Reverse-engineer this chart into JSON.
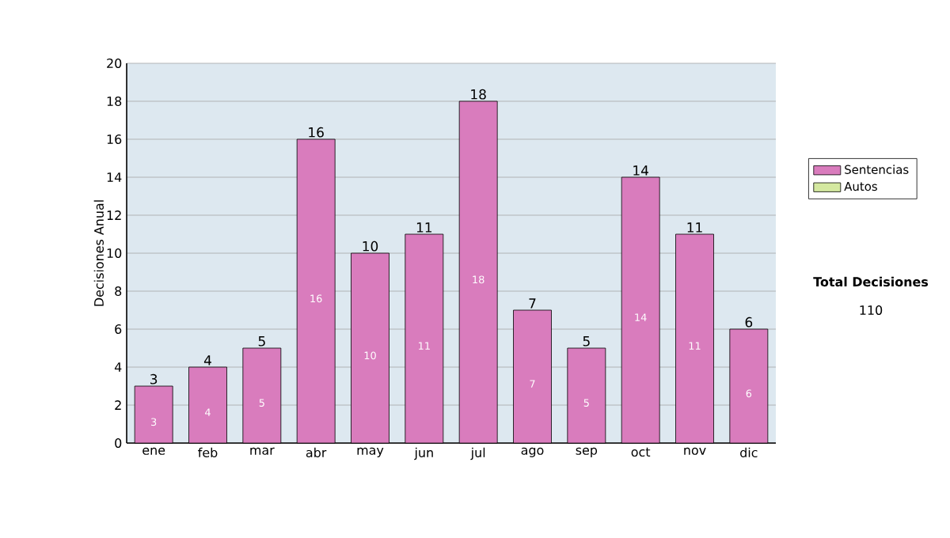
{
  "chart_data": {
    "type": "bar",
    "stacked": true,
    "ylabel": "Decisiones Anual",
    "categories": [
      "ene",
      "feb",
      "mar",
      "abr",
      "may",
      "jun",
      "jul",
      "ago",
      "sep",
      "oct",
      "nov",
      "dic"
    ],
    "series": [
      {
        "name": "Sentencias",
        "color": "#d97cbd",
        "values": [
          3,
          4,
          5,
          16,
          10,
          11,
          18,
          7,
          5,
          14,
          11,
          6
        ],
        "value_labels": [
          "3",
          "4",
          "5",
          "16",
          "10",
          "11",
          "18",
          "7",
          "5",
          "14",
          "11",
          "6"
        ]
      },
      {
        "name": "Autos",
        "color": "#d4e8a0",
        "values": [
          0,
          0,
          0,
          0,
          0,
          0,
          0,
          0,
          0,
          0,
          0,
          0
        ]
      }
    ],
    "totals": [
      "3",
      "4",
      "5",
      "16",
      "10",
      "11",
      "18",
      "7",
      "5",
      "14",
      "11",
      "6"
    ],
    "ylim": [
      0,
      20
    ],
    "yticks": [
      0,
      2,
      4,
      6,
      8,
      10,
      12,
      14,
      16,
      18,
      20
    ],
    "grid": "y",
    "legend": "right",
    "annotations": [
      "Total Decisiones",
      "110"
    ]
  }
}
